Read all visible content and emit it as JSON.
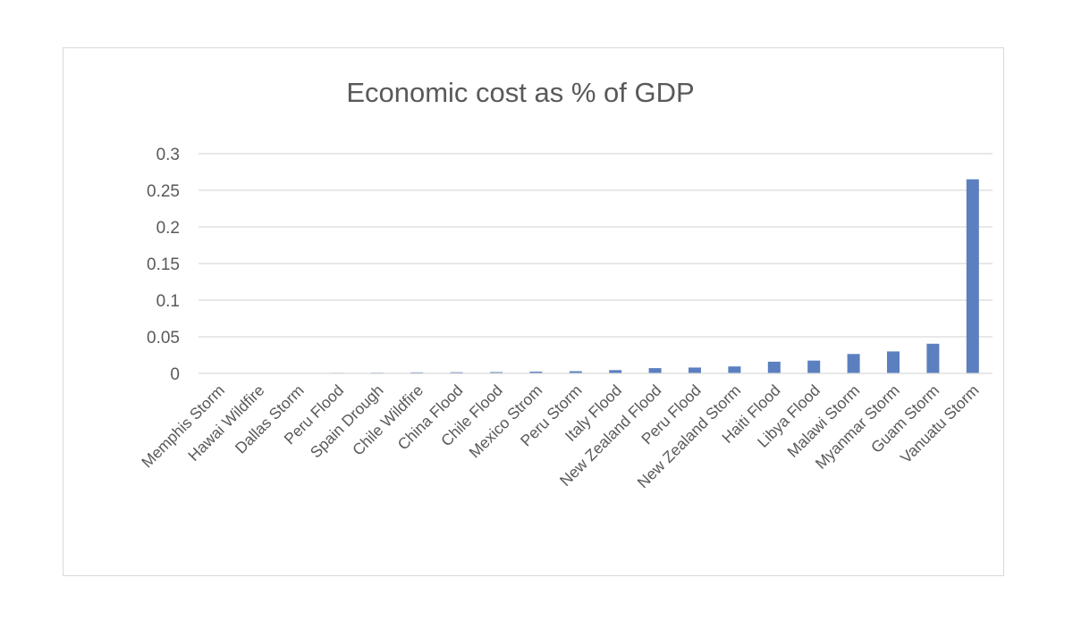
{
  "chart_data": {
    "type": "bar",
    "title": "Economic cost as % of GDP",
    "xlabel": "",
    "ylabel": "",
    "ylim": [
      0,
      0.3
    ],
    "yticks": [
      {
        "value": 0,
        "label": "0"
      },
      {
        "value": 0.05,
        "label": "0.05"
      },
      {
        "value": 0.1,
        "label": "0.1"
      },
      {
        "value": 0.15,
        "label": "0.15"
      },
      {
        "value": 0.2,
        "label": "0.2"
      },
      {
        "value": 0.25,
        "label": "0.25"
      },
      {
        "value": 0.3,
        "label": "0.3"
      }
    ],
    "grid": true,
    "legend": "none",
    "bar_color": "#5b7fbf",
    "categories": [
      "Memphis Storm",
      "Hawai Wildfire",
      "Dallas  Storm",
      "Peru Flood",
      "Spain Drough",
      "Chile Wildfire",
      "China Flood",
      "Chile Flood",
      "Mexico Strom",
      "Peru Storm",
      "Italy Flood",
      "New Zealand Flood",
      "Peru Flood",
      "New Zealand Storm",
      "Haiti Flood",
      "Libya Flood",
      "Malawi Storm",
      "Myanmar Storm",
      "Guam Storm",
      "Vanuatu Storm"
    ],
    "values": [
      0.0002,
      0.0003,
      0.0004,
      0.0008,
      0.001,
      0.0014,
      0.0016,
      0.0018,
      0.0024,
      0.003,
      0.0045,
      0.0072,
      0.008,
      0.0095,
      0.016,
      0.0175,
      0.0265,
      0.03,
      0.0405,
      0.265
    ]
  }
}
